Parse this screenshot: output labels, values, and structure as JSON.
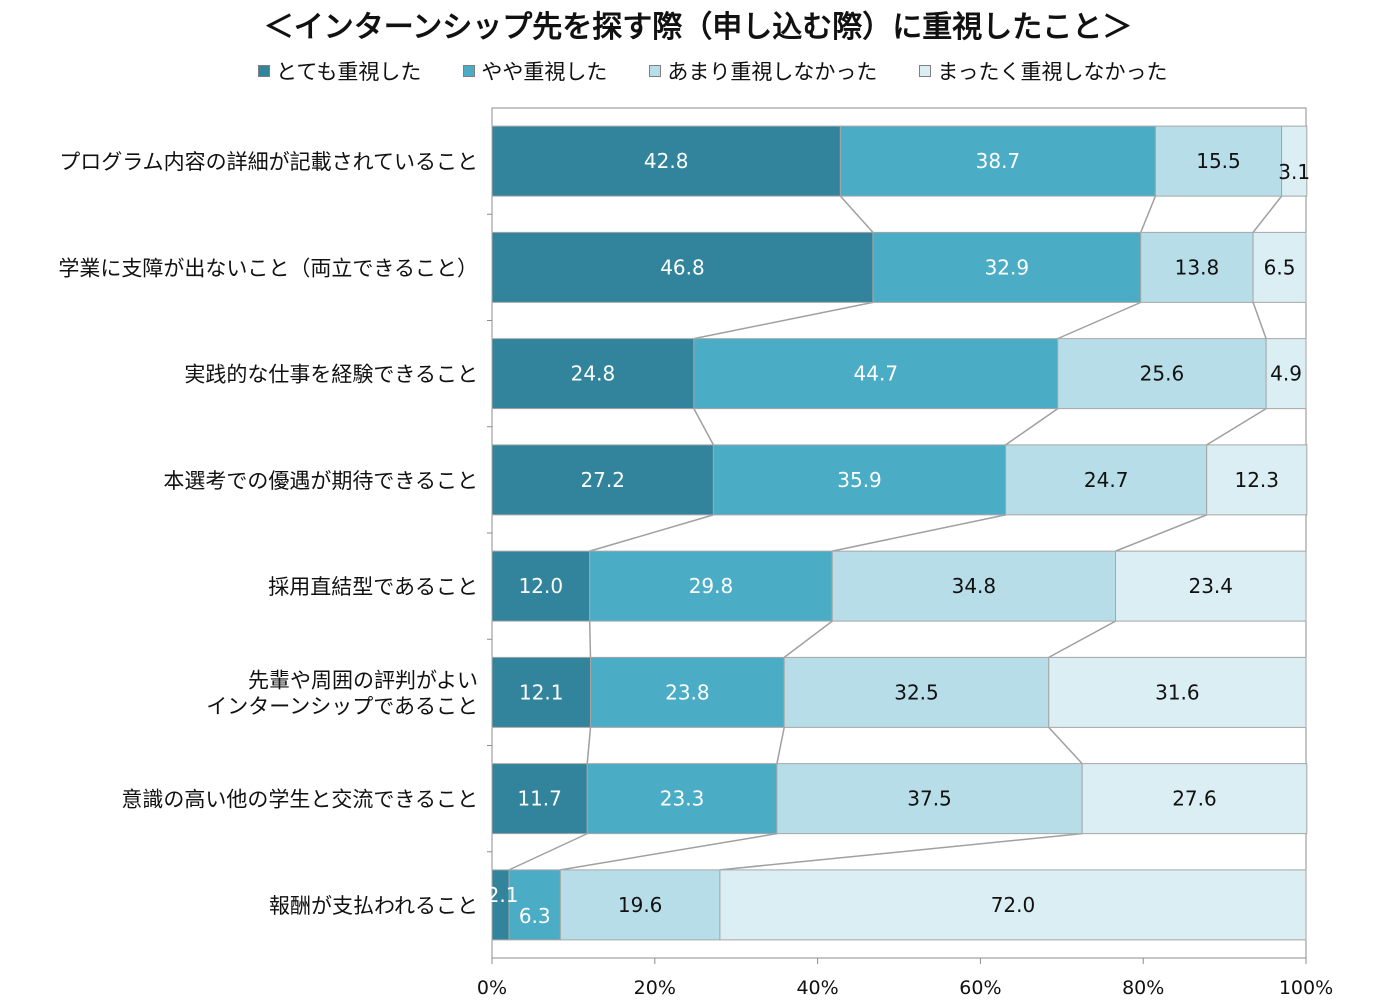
{
  "chart_data": {
    "type": "bar",
    "orientation": "horizontal",
    "stacked": "percent",
    "title": "＜インターンシップ先を探す際（申し込む際）に重視したこと＞",
    "categories": [
      [
        "プログラム内容の詳細が記載されていること"
      ],
      [
        "学業に支障が出ないこと（両立できること）"
      ],
      [
        "実践的な仕事を経験できること"
      ],
      [
        "本選考での優遇が期待できること"
      ],
      [
        "採用直結型であること"
      ],
      [
        "先輩や周囲の評判がよい",
        "インターンシップであること"
      ],
      [
        "意識の高い他の学生と交流できること"
      ],
      [
        "報酬が支払われること"
      ]
    ],
    "series": [
      {
        "name": "とても重視した",
        "color": "#31849b",
        "label_color": "#ffffff",
        "values": [
          42.8,
          46.8,
          24.8,
          27.2,
          12.0,
          12.1,
          11.7,
          2.1
        ],
        "labels": [
          "42.8",
          "46.8",
          "24.8",
          "27.2",
          "12.0",
          "12.1",
          "11.7",
          "2.1"
        ]
      },
      {
        "name": "やや重視した",
        "color": "#4bacc6",
        "label_color": "#ffffff",
        "values": [
          38.7,
          32.9,
          44.7,
          35.9,
          29.8,
          23.8,
          23.3,
          6.3
        ],
        "labels": [
          "38.7",
          "32.9",
          "44.7",
          "35.9",
          "29.8",
          "23.8",
          "23.3",
          "6.3"
        ]
      },
      {
        "name": "あまり重視しなかった",
        "color": "#b7dee8",
        "label_color": "#111111",
        "values": [
          15.5,
          13.8,
          25.6,
          24.7,
          34.8,
          32.5,
          37.5,
          19.6
        ],
        "labels": [
          "15.5",
          "13.8",
          "25.6",
          "24.7",
          "34.8",
          "32.5",
          "37.5",
          "19.6"
        ]
      },
      {
        "name": "まったく重視しなかった",
        "color": "#daeef3",
        "label_color": "#111111",
        "values": [
          3.1,
          6.5,
          4.9,
          12.3,
          23.4,
          31.6,
          27.6,
          72.0
        ],
        "labels": [
          "3.1",
          "6.5",
          "4.9",
          "12.3",
          "23.4",
          "31.6",
          "27.6",
          "72.0"
        ]
      }
    ],
    "xlim": [
      0,
      100
    ],
    "xticks": [
      "0%",
      "20%",
      "40%",
      "60%",
      "80%",
      "100%"
    ],
    "legend_position": "top",
    "series_lines": true
  }
}
